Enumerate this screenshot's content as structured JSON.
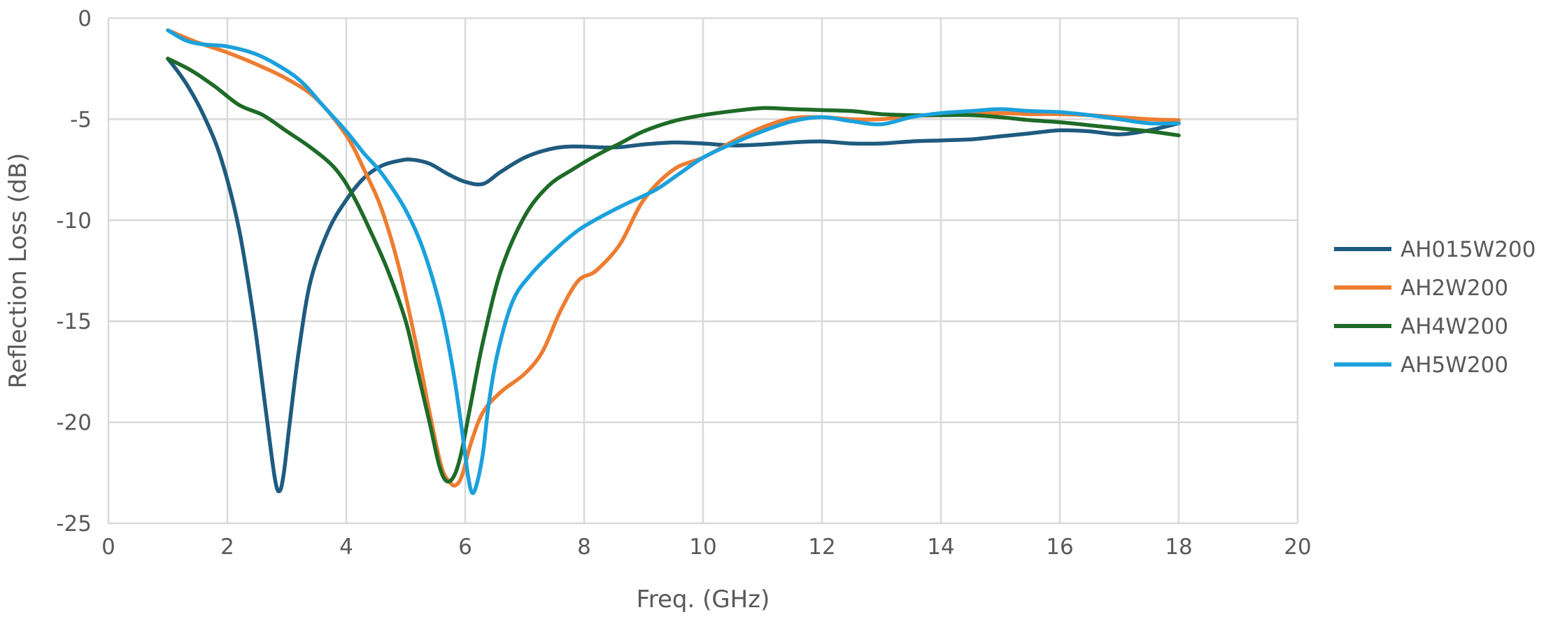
{
  "chart_data": {
    "type": "line",
    "title": "",
    "xlabel": "Freq. (GHz)",
    "ylabel": "Reflection  Loss (dB)",
    "xlim": [
      0,
      20
    ],
    "ylim": [
      -25,
      0
    ],
    "xticks": [
      0,
      2,
      4,
      6,
      8,
      10,
      12,
      14,
      16,
      18,
      20
    ],
    "yticks": [
      0,
      -5,
      -10,
      -15,
      -20,
      -25
    ],
    "grid": true,
    "legend_position": "right",
    "series": [
      {
        "name": "AH015W200",
        "color": "#1f5b7f",
        "x": [
          1.0,
          1.3,
          1.6,
          1.9,
          2.2,
          2.45,
          2.65,
          2.8,
          2.88,
          2.95,
          3.05,
          3.2,
          3.4,
          3.7,
          4.0,
          4.3,
          4.6,
          4.9,
          5.1,
          5.4,
          5.7,
          6.0,
          6.3,
          6.6,
          7.0,
          7.4,
          7.8,
          8.5,
          9.0,
          9.5,
          10.0,
          10.5,
          11.0,
          11.5,
          12.0,
          12.5,
          13.0,
          13.5,
          14.0,
          14.5,
          15.0,
          15.5,
          16.0,
          16.5,
          17.0,
          17.5,
          18.0
        ],
        "y": [
          -2.0,
          -3.2,
          -4.8,
          -7.0,
          -10.5,
          -15.0,
          -19.5,
          -22.8,
          -23.4,
          -22.5,
          -20.0,
          -16.5,
          -13.0,
          -10.5,
          -9.0,
          -7.9,
          -7.3,
          -7.05,
          -7.0,
          -7.2,
          -7.7,
          -8.1,
          -8.2,
          -7.6,
          -6.9,
          -6.5,
          -6.35,
          -6.4,
          -6.25,
          -6.15,
          -6.2,
          -6.3,
          -6.25,
          -6.15,
          -6.1,
          -6.2,
          -6.2,
          -6.1,
          -6.05,
          -6.0,
          -5.85,
          -5.7,
          -5.55,
          -5.6,
          -5.75,
          -5.55,
          -5.2
        ]
      },
      {
        "name": "AH2W200",
        "color": "#ed7d31",
        "x": [
          1.0,
          1.5,
          2.0,
          2.5,
          3.0,
          3.5,
          4.0,
          4.3,
          4.6,
          4.9,
          5.2,
          5.4,
          5.6,
          5.75,
          5.85,
          5.95,
          6.1,
          6.3,
          6.6,
          7.0,
          7.3,
          7.6,
          7.9,
          8.2,
          8.6,
          9.0,
          9.5,
          10.0,
          10.5,
          11.0,
          11.5,
          12.0,
          12.5,
          13.0,
          13.5,
          14.0,
          14.5,
          15.0,
          15.5,
          16.0,
          16.5,
          17.0,
          17.5,
          18.0
        ],
        "y": [
          -0.6,
          -1.2,
          -1.7,
          -2.3,
          -3.0,
          -4.0,
          -5.8,
          -7.5,
          -9.5,
          -12.5,
          -16.5,
          -19.5,
          -22.2,
          -23.0,
          -23.1,
          -22.6,
          -21.0,
          -19.5,
          -18.5,
          -17.6,
          -16.5,
          -14.5,
          -13.0,
          -12.5,
          -11.2,
          -9.0,
          -7.5,
          -6.9,
          -6.1,
          -5.4,
          -4.95,
          -4.9,
          -5.0,
          -5.0,
          -4.85,
          -4.8,
          -4.75,
          -4.7,
          -4.75,
          -4.75,
          -4.8,
          -4.9,
          -5.0,
          -5.05
        ]
      },
      {
        "name": "AH4W200",
        "color": "#1e6b28",
        "x": [
          1.0,
          1.4,
          1.8,
          2.2,
          2.6,
          3.0,
          3.4,
          3.8,
          4.1,
          4.4,
          4.7,
          5.0,
          5.2,
          5.4,
          5.55,
          5.65,
          5.75,
          5.85,
          5.95,
          6.1,
          6.3,
          6.6,
          7.0,
          7.4,
          7.8,
          8.2,
          8.6,
          9.0,
          9.5,
          10.0,
          10.5,
          11.0,
          11.5,
          12.0,
          12.5,
          13.0,
          13.5,
          14.0,
          14.5,
          15.0,
          15.5,
          16.0,
          16.5,
          17.0,
          17.5,
          18.0
        ],
        "y": [
          -2.0,
          -2.6,
          -3.4,
          -4.3,
          -4.8,
          -5.6,
          -6.4,
          -7.4,
          -8.7,
          -10.5,
          -12.5,
          -15.0,
          -17.5,
          -20.0,
          -22.0,
          -22.8,
          -22.9,
          -22.4,
          -21.3,
          -19.0,
          -16.0,
          -12.5,
          -9.8,
          -8.3,
          -7.5,
          -6.8,
          -6.2,
          -5.6,
          -5.1,
          -4.8,
          -4.6,
          -4.45,
          -4.5,
          -4.55,
          -4.6,
          -4.75,
          -4.8,
          -4.8,
          -4.8,
          -4.9,
          -5.05,
          -5.15,
          -5.3,
          -5.45,
          -5.6,
          -5.8
        ]
      },
      {
        "name": "AH5W200",
        "color": "#1ba1dc",
        "x": [
          1.0,
          1.3,
          1.6,
          2.0,
          2.5,
          3.0,
          3.3,
          3.6,
          4.0,
          4.3,
          4.6,
          5.0,
          5.3,
          5.6,
          5.8,
          5.95,
          6.05,
          6.12,
          6.2,
          6.3,
          6.4,
          6.55,
          6.8,
          7.1,
          7.5,
          7.9,
          8.3,
          8.7,
          9.2,
          9.6,
          10.0,
          10.5,
          11.0,
          11.5,
          12.0,
          12.5,
          13.0,
          13.5,
          14.0,
          14.5,
          15.0,
          15.5,
          16.0,
          16.5,
          17.0,
          17.5,
          18.0
        ],
        "y": [
          -0.6,
          -1.1,
          -1.3,
          -1.4,
          -1.8,
          -2.6,
          -3.3,
          -4.3,
          -5.6,
          -6.7,
          -7.7,
          -9.5,
          -11.5,
          -14.5,
          -17.5,
          -20.5,
          -22.7,
          -23.5,
          -23.0,
          -21.5,
          -19.0,
          -16.5,
          -14.0,
          -12.7,
          -11.5,
          -10.5,
          -9.8,
          -9.2,
          -8.5,
          -7.7,
          -6.9,
          -6.2,
          -5.6,
          -5.1,
          -4.9,
          -5.1,
          -5.25,
          -4.9,
          -4.7,
          -4.6,
          -4.5,
          -4.6,
          -4.65,
          -4.8,
          -5.0,
          -5.2,
          -5.2
        ]
      }
    ]
  }
}
